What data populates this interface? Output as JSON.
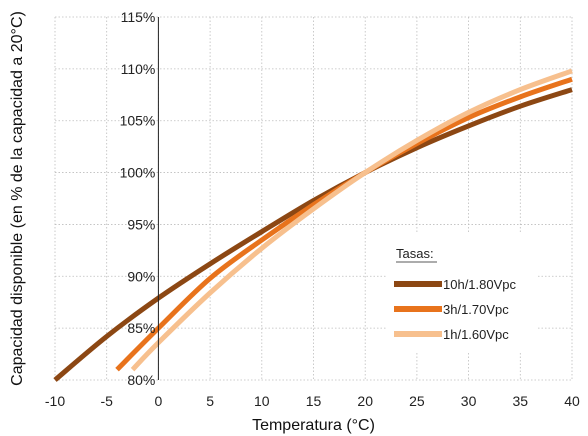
{
  "chart_data": {
    "type": "line",
    "title": "",
    "xlabel": "Temperatura (°C)",
    "ylabel": "Capacidad disponible (en % de la capacidad a 20°C)",
    "xlim": [
      -10,
      40
    ],
    "ylim": [
      80,
      115
    ],
    "x_ticks": [
      "-10",
      "-5",
      "0",
      "5",
      "10",
      "15",
      "20",
      "25",
      "30",
      "35",
      "40"
    ],
    "y_ticks": [
      "80%",
      "85%",
      "90%",
      "95%",
      "100%",
      "105%",
      "110%",
      "115%"
    ],
    "grid": "dotted",
    "legend": {
      "title": "Tasas:",
      "position": "lower-right"
    },
    "series": [
      {
        "name": "10h/1.80Vpc",
        "color": "#8c4713",
        "x": [
          -10,
          -5,
          0,
          5,
          10,
          15,
          20,
          25,
          30,
          35,
          40
        ],
        "y": [
          80.0,
          84.2,
          87.9,
          91.2,
          94.3,
          97.3,
          100.0,
          102.4,
          104.5,
          106.4,
          108.0
        ]
      },
      {
        "name": "3h/1.70Vpc",
        "color": "#e8731c",
        "x": [
          -4,
          0,
          5,
          10,
          15,
          20,
          25,
          30,
          35,
          40
        ],
        "y": [
          81.0,
          85.0,
          89.8,
          93.5,
          96.9,
          100.0,
          102.8,
          105.3,
          107.3,
          109.0
        ]
      },
      {
        "name": "1h/1.60Vpc",
        "color": "#f7c08e",
        "x": [
          -2.5,
          0,
          5,
          10,
          15,
          20,
          25,
          30,
          35,
          40
        ],
        "y": [
          81.0,
          83.6,
          88.4,
          92.7,
          96.5,
          100.0,
          103.1,
          105.8,
          108.0,
          109.8
        ]
      }
    ]
  }
}
